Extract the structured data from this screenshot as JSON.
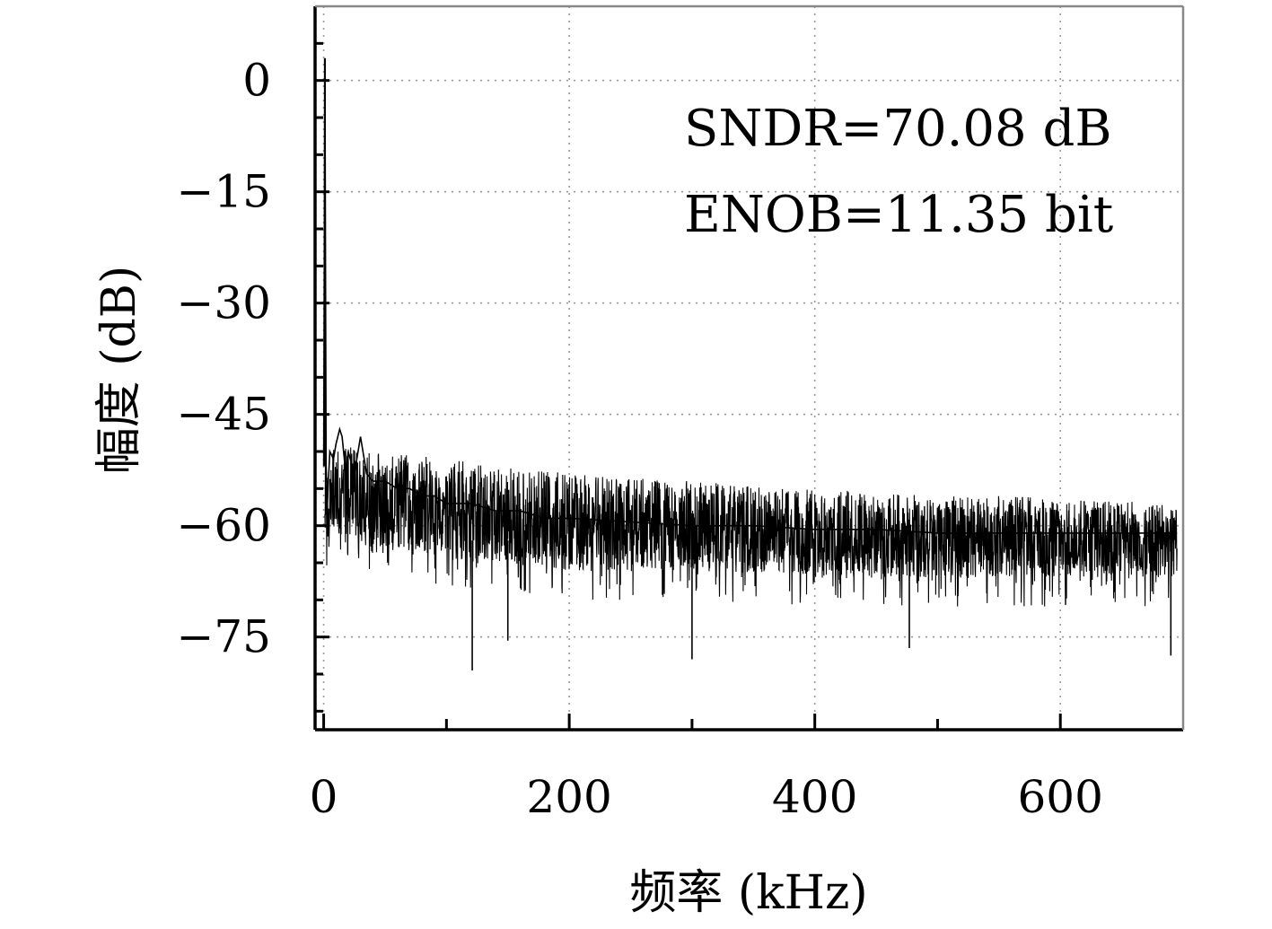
{
  "chart_data": {
    "type": "line",
    "title": "",
    "xlabel": "频率 (kHz)",
    "ylabel": "幅度 (dB)",
    "xlim": [
      -7,
      700
    ],
    "ylim": [
      -87.5,
      10
    ],
    "xticks": [
      0,
      200,
      400,
      600
    ],
    "xtick_labels": [
      "0",
      "200",
      "400",
      "600"
    ],
    "yticks": [
      0,
      -15,
      -30,
      -45,
      -60,
      -75
    ],
    "ytick_labels": [
      "0",
      "−15",
      "−30",
      "−45",
      "−60",
      "−75"
    ],
    "grid": true,
    "annotations": [
      "SNDR=70.08 dB",
      "ENOB=11.35 bit"
    ],
    "series": [
      {
        "color": "#000000",
        "x": [
          0,
          1,
          2,
          3,
          5,
          8,
          10,
          13,
          15,
          18,
          20,
          25,
          30,
          35,
          40,
          50,
          60,
          70,
          80,
          90,
          100,
          120,
          140,
          160,
          180,
          200,
          250,
          300,
          350,
          400,
          450,
          500,
          550,
          600,
          650,
          695
        ],
        "y": [
          -52,
          3,
          -52,
          -57,
          -50,
          -51,
          -49,
          -47,
          -48,
          -53,
          -50,
          -53,
          -48,
          -53,
          -54,
          -54,
          -55,
          -55,
          -56,
          -56,
          -57,
          -57,
          -58,
          -58,
          -59,
          -59,
          -59.5,
          -60,
          -60,
          -60.5,
          -60.5,
          -61,
          -61,
          -61,
          -61,
          -61
        ],
        "noise_floor_upper": [
          -49,
          -50,
          -51,
          -52,
          -53,
          -54,
          -55,
          -56,
          -56,
          -57
        ],
        "noise_floor_lower": [
          -62,
          -63,
          -64,
          -65,
          -66,
          -66,
          -67,
          -67,
          -67,
          -67
        ],
        "noise_x": [
          0,
          50,
          100,
          150,
          200,
          300,
          400,
          500,
          600,
          695
        ],
        "notable_dips": [
          {
            "x": 121,
            "y": -79.5
          },
          {
            "x": 150,
            "y": -75.5
          },
          {
            "x": 300,
            "y": -78
          },
          {
            "x": 477,
            "y": -76.5
          },
          {
            "x": 690,
            "y": -77.5
          }
        ]
      }
    ]
  }
}
